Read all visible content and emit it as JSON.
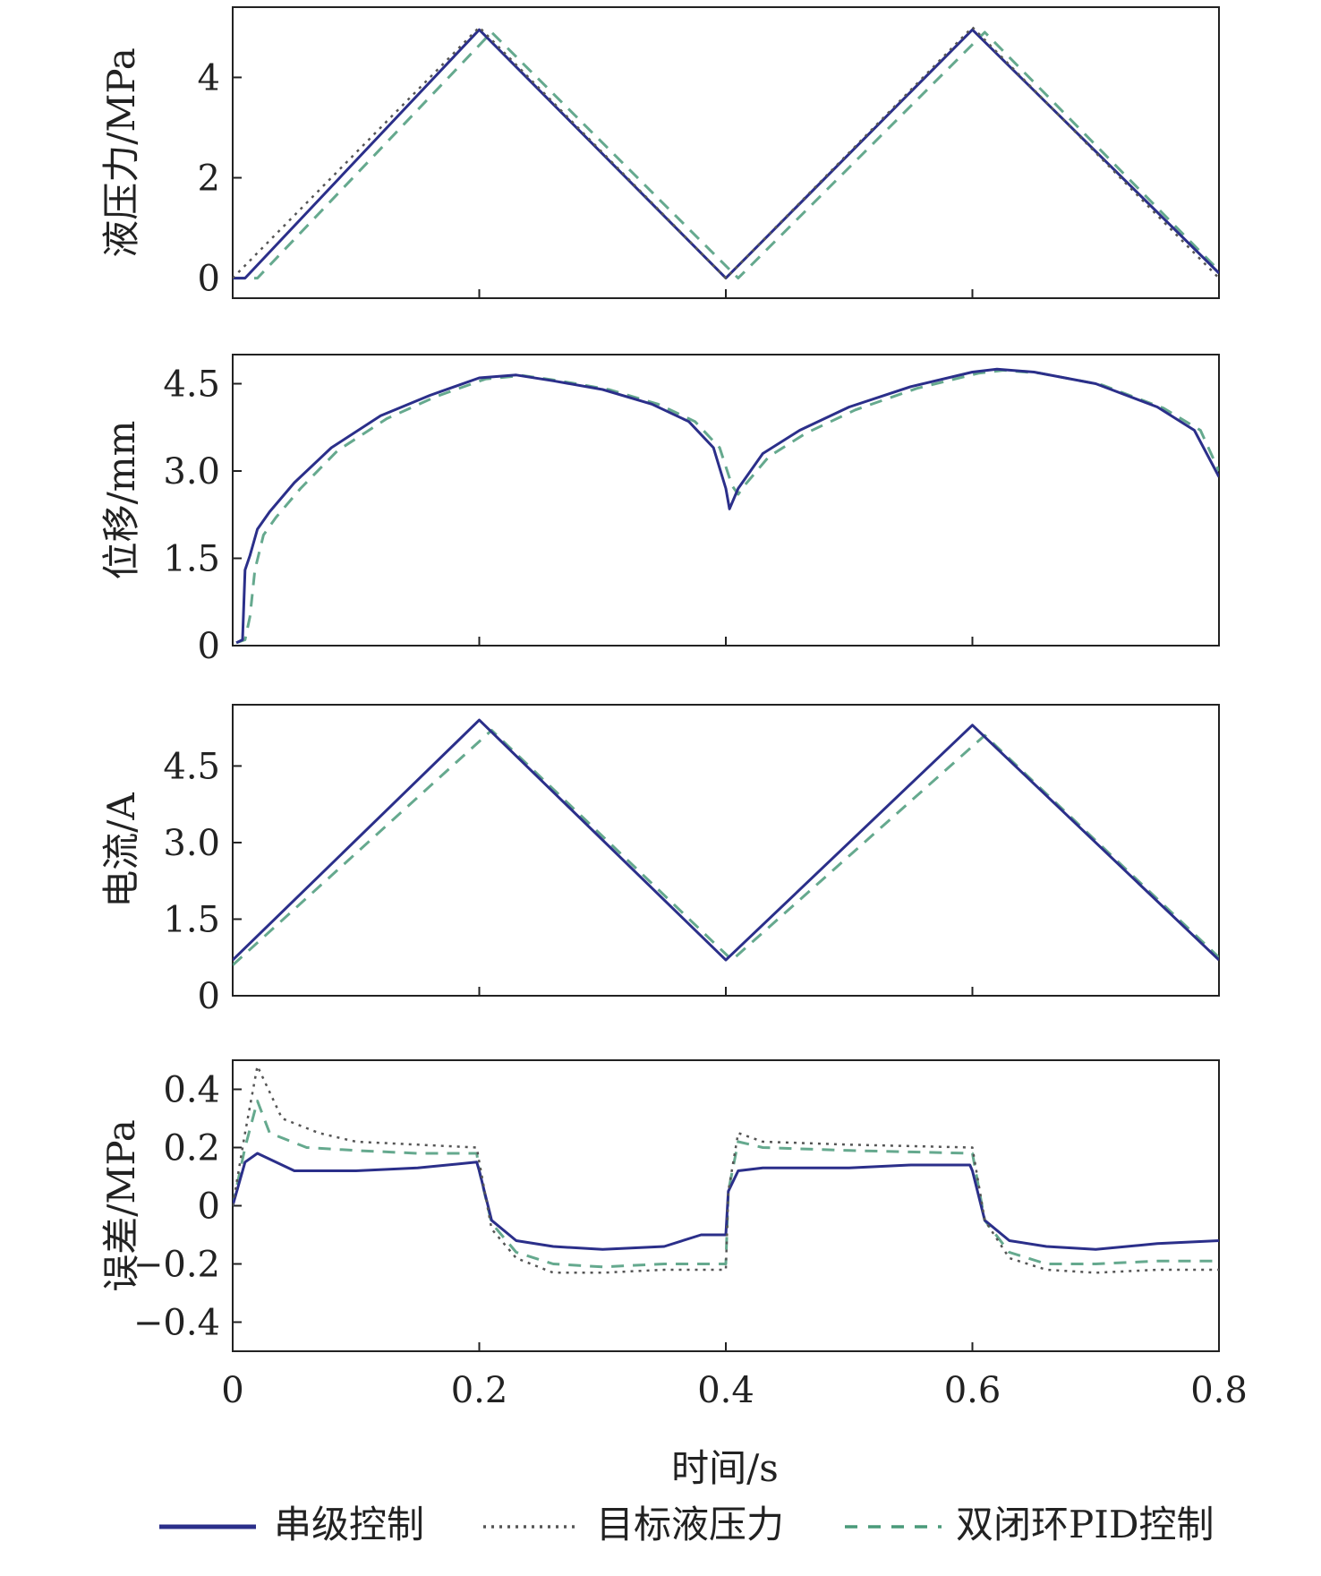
{
  "chart_data": {
    "type": "line",
    "x_label": "时间/s",
    "x_ticks": [
      "0",
      "0.2",
      "0.4",
      "0.6",
      "0.8"
    ],
    "xlim": [
      0,
      0.8
    ],
    "grid": false,
    "legend_position": "bottom",
    "legend": [
      {
        "name": "串级控制",
        "color": "#2b2f8a",
        "style": "solid"
      },
      {
        "name": "目标液压力",
        "color": "#555555",
        "style": "dotted"
      },
      {
        "name": "双闭环PID控制",
        "color": "#4a9a7a",
        "style": "dashed"
      }
    ],
    "panels": [
      {
        "id": "pressure",
        "y_label": "液压力/MPa",
        "ylim": [
          -0.4,
          5.4
        ],
        "y_ticks": [
          {
            "v": 0,
            "label": "0"
          },
          {
            "v": 2,
            "label": "2"
          },
          {
            "v": 4,
            "label": "4"
          }
        ],
        "series": [
          {
            "name": "目标液压力",
            "x": [
              0,
              0.2,
              0.4,
              0.6,
              0.8
            ],
            "y": [
              0,
              5,
              0,
              5,
              0
            ]
          },
          {
            "name": "串级控制",
            "x": [
              0,
              0.01,
              0.2,
              0.4,
              0.6,
              0.8
            ],
            "y": [
              0,
              0,
              4.95,
              0,
              4.95,
              0.1
            ]
          },
          {
            "name": "双闭环PID控制",
            "x": [
              0,
              0.02,
              0.21,
              0.41,
              0.61,
              0.8
            ],
            "y": [
              0,
              0,
              4.9,
              0,
              4.9,
              0.15
            ]
          }
        ]
      },
      {
        "id": "displacement",
        "y_label": "位移/mm",
        "ylim": [
          0,
          5.0
        ],
        "y_ticks": [
          {
            "v": 0,
            "label": "0"
          },
          {
            "v": 1.5,
            "label": "1.5"
          },
          {
            "v": 3.0,
            "label": "3.0"
          },
          {
            "v": 4.5,
            "label": "4.5"
          }
        ],
        "series": [
          {
            "name": "串级控制",
            "x": [
              0.003,
              0.008,
              0.01,
              0.014,
              0.02,
              0.03,
              0.05,
              0.08,
              0.12,
              0.16,
              0.2,
              0.23,
              0.26,
              0.3,
              0.34,
              0.37,
              0.39,
              0.4,
              0.403,
              0.41,
              0.43,
              0.46,
              0.5,
              0.55,
              0.6,
              0.62,
              0.65,
              0.7,
              0.75,
              0.78,
              0.8
            ],
            "y": [
              0.05,
              0.1,
              1.3,
              1.55,
              2.0,
              2.3,
              2.8,
              3.4,
              3.95,
              4.3,
              4.6,
              4.65,
              4.55,
              4.4,
              4.15,
              3.85,
              3.4,
              2.7,
              2.35,
              2.7,
              3.3,
              3.7,
              4.1,
              4.45,
              4.7,
              4.75,
              4.7,
              4.5,
              4.1,
              3.7,
              2.9
            ]
          },
          {
            "name": "双闭环PID控制",
            "x": [
              0.003,
              0.01,
              0.014,
              0.018,
              0.025,
              0.035,
              0.055,
              0.085,
              0.125,
              0.165,
              0.205,
              0.235,
              0.265,
              0.305,
              0.345,
              0.375,
              0.395,
              0.405,
              0.41,
              0.415,
              0.435,
              0.465,
              0.505,
              0.555,
              0.605,
              0.625,
              0.655,
              0.705,
              0.755,
              0.785,
              0.8
            ],
            "y": [
              0.05,
              0.1,
              0.5,
              1.3,
              1.9,
              2.2,
              2.7,
              3.35,
              3.9,
              4.28,
              4.58,
              4.64,
              4.55,
              4.4,
              4.15,
              3.85,
              3.4,
              2.75,
              2.6,
              2.75,
              3.25,
              3.65,
              4.05,
              4.42,
              4.68,
              4.73,
              4.68,
              4.48,
              4.08,
              3.7,
              3.0
            ]
          }
        ]
      },
      {
        "id": "current",
        "y_label": "电流/A",
        "ylim": [
          0,
          5.7
        ],
        "y_ticks": [
          {
            "v": 0,
            "label": "0"
          },
          {
            "v": 1.5,
            "label": "1.5"
          },
          {
            "v": 3.0,
            "label": "3.0"
          },
          {
            "v": 4.5,
            "label": "4.5"
          }
        ],
        "series": [
          {
            "name": "串级控制",
            "x": [
              0,
              0.2,
              0.4,
              0.6,
              0.8
            ],
            "y": [
              0.7,
              5.4,
              0.7,
              5.3,
              0.7
            ]
          },
          {
            "name": "双闭环PID控制",
            "x": [
              0,
              0.21,
              0.405,
              0.61,
              0.8
            ],
            "y": [
              0.6,
              5.2,
              0.7,
              5.1,
              0.75
            ]
          }
        ]
      },
      {
        "id": "error",
        "y_label": "误差/MPa",
        "ylim": [
          -0.5,
          0.5
        ],
        "y_ticks": [
          {
            "v": -0.4,
            "label": "−0.4"
          },
          {
            "v": -0.2,
            "label": "−0.2"
          },
          {
            "v": 0,
            "label": "0"
          },
          {
            "v": 0.2,
            "label": "0.2"
          },
          {
            "v": 0.4,
            "label": "0.4"
          }
        ],
        "series": [
          {
            "name": "串级控制",
            "x": [
              0,
              0.01,
              0.02,
              0.05,
              0.1,
              0.15,
              0.198,
              0.2,
              0.21,
              0.23,
              0.26,
              0.3,
              0.35,
              0.38,
              0.4,
              0.402,
              0.41,
              0.43,
              0.45,
              0.5,
              0.55,
              0.598,
              0.6,
              0.61,
              0.63,
              0.66,
              0.7,
              0.75,
              0.8
            ],
            "y": [
              0,
              0.15,
              0.18,
              0.12,
              0.12,
              0.13,
              0.15,
              0.12,
              -0.05,
              -0.12,
              -0.14,
              -0.15,
              -0.14,
              -0.1,
              -0.1,
              0.05,
              0.12,
              0.13,
              0.13,
              0.13,
              0.14,
              0.14,
              0.12,
              -0.05,
              -0.12,
              -0.14,
              -0.15,
              -0.13,
              -0.12
            ]
          },
          {
            "name": "目标液压力",
            "x": [
              0,
              0.01,
              0.02,
              0.04,
              0.07,
              0.1,
              0.15,
              0.198,
              0.2,
              0.21,
              0.23,
              0.26,
              0.3,
              0.35,
              0.4,
              0.402,
              0.41,
              0.43,
              0.5,
              0.6,
              0.61,
              0.63,
              0.66,
              0.7,
              0.75,
              0.8
            ],
            "y": [
              0,
              0.25,
              0.48,
              0.3,
              0.25,
              0.22,
              0.21,
              0.2,
              0.15,
              -0.08,
              -0.18,
              -0.23,
              -0.23,
              -0.22,
              -0.22,
              0.05,
              0.25,
              0.22,
              0.21,
              0.2,
              -0.05,
              -0.18,
              -0.22,
              -0.23,
              -0.22,
              -0.22
            ]
          },
          {
            "name": "双闭环PID控制",
            "x": [
              0,
              0.01,
              0.02,
              0.03,
              0.06,
              0.1,
              0.15,
              0.198,
              0.2,
              0.21,
              0.23,
              0.26,
              0.3,
              0.35,
              0.4,
              0.402,
              0.41,
              0.43,
              0.5,
              0.6,
              0.61,
              0.63,
              0.66,
              0.7,
              0.75,
              0.8
            ],
            "y": [
              0,
              0.2,
              0.36,
              0.25,
              0.2,
              0.19,
              0.18,
              0.18,
              0.12,
              -0.06,
              -0.16,
              -0.2,
              -0.21,
              -0.2,
              -0.2,
              0.05,
              0.22,
              0.2,
              0.19,
              0.18,
              -0.05,
              -0.16,
              -0.2,
              -0.2,
              -0.19,
              -0.19
            ]
          }
        ]
      }
    ]
  }
}
